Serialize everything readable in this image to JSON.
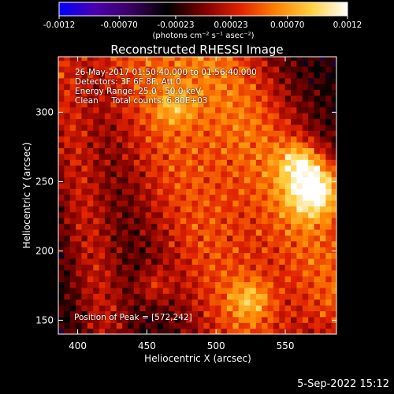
{
  "colorbar": {
    "ticks": [
      "-0.0012",
      "-0.00070",
      "-0.00023",
      "0.00023",
      "0.00070",
      "0.0012"
    ],
    "tick_values": [
      -0.0012,
      -0.0007,
      -0.00023,
      0.00023,
      0.0007,
      0.0012
    ],
    "units": "(photons cm⁻² s⁻¹ asec⁻²)",
    "stops": [
      "#0000ff",
      "#4a00b0",
      "#3a0060",
      "#000000",
      "#7a0000",
      "#e02000",
      "#ff8000",
      "#ffd040",
      "#ffffff"
    ]
  },
  "chart_data": {
    "type": "heatmap",
    "title": "Reconstructed RHESSI Image",
    "xlabel": "Heliocentric X (arcsec)",
    "ylabel": "Heliocentric Y (arcsec)",
    "xlim": [
      386,
      587
    ],
    "ylim": [
      140,
      340
    ],
    "xticks": [
      400,
      450,
      500,
      550
    ],
    "yticks": [
      150,
      200,
      250,
      300
    ],
    "peak": {
      "x": 572,
      "y": 242
    },
    "info_lines": [
      "26-May-2017 01:50:40.000 to 01:56:40.000",
      "Detectors: 3F 6F 8F, Att 0",
      "Energy Range: 25.0 - 50.0 keV",
      "Clean     Total counts: 6.80E+03"
    ],
    "peak_label": "Position of Peak = [572,242]"
  },
  "footer": {
    "date": "5-Sep-2022 15:12"
  }
}
